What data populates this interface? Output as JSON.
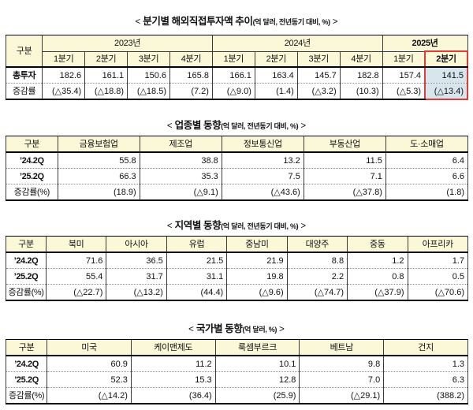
{
  "misc": {
    "lt": "<",
    "gt": ">"
  },
  "colors": {
    "header_bg": "#FBF8D8",
    "highlight_bg": "#D7E6ED",
    "highlight_border": "#DE3B3B",
    "grid_line": "#3b3b3b",
    "dotted_line": "#8a8a8a",
    "text": "#111111"
  },
  "sections": [
    {
      "id": "quarterly-trend",
      "title_main": "분기별 해외직접투자액 추이",
      "title_paren": "(억 달러, 전년동기 대비, %)",
      "table": {
        "corner_label": "구분",
        "corner_width_pct": 7.9,
        "groups": [
          {
            "label": "2023년",
            "span": 4,
            "bold": false
          },
          {
            "label": "2024년",
            "span": 4,
            "bold": false
          },
          {
            "label": "2025년",
            "span": 2,
            "bold": true
          }
        ],
        "subheaders": [
          "1분기",
          "2분기",
          "3분기",
          "4분기",
          "1분기",
          "2분기",
          "3분기",
          "4분기",
          "1분기",
          "2분기"
        ],
        "highlight_col": 9,
        "rows": [
          {
            "label": "총투자",
            "bold": true,
            "values": [
              "182.6",
              "161.1",
              "150.6",
              "165.8",
              "166.1",
              "163.4",
              "145.7",
              "182.8",
              "157.4",
              "141.5"
            ]
          },
          {
            "label": "증감률",
            "bold": false,
            "values": [
              "(△35.4)",
              "(△18.8)",
              "(△18.5)",
              "(7.2)",
              "(△9.0)",
              "(1.4)",
              "(△3.2)",
              "(10.3)",
              "(△5.3)",
              "(△13.4)"
            ]
          }
        ]
      }
    },
    {
      "id": "by-industry",
      "title_main": "업종별 동향",
      "title_paren": "(억 달러, 전년동기 대비, %)",
      "table": {
        "corner_label": "구분",
        "corner_width_pct": 11.2,
        "headers": [
          "금융보험업",
          "제조업",
          "정보통신업",
          "부동산업",
          "도·소매업"
        ],
        "rows": [
          {
            "label": "’24.2Q",
            "bold": true,
            "values": [
              "55.8",
              "38.8",
              "13.2",
              "11.5",
              "6.4"
            ]
          },
          {
            "label": "’25.2Q",
            "bold": true,
            "values": [
              "66.3",
              "35.3",
              "7.5",
              "7.1",
              "6.6"
            ]
          },
          {
            "label": "증감률(%)",
            "bold": false,
            "values": [
              "(18.9)",
              "(△9.1)",
              "(△43.6)",
              "(△37.8)",
              "(1.8)"
            ]
          }
        ]
      }
    },
    {
      "id": "by-region",
      "title_main": "지역별 동향",
      "title_paren": "(억 달러, 전년동기 대비, %)",
      "table": {
        "corner_label": "구분",
        "corner_width_pct": 8.7,
        "headers": [
          "북미",
          "아시아",
          "유럽",
          "중남미",
          "대양주",
          "중동",
          "아프리카"
        ],
        "rows": [
          {
            "label": "’24.2Q",
            "bold": true,
            "values": [
              "71.6",
              "36.5",
              "21.5",
              "21.9",
              "8.8",
              "1.2",
              "1.7"
            ]
          },
          {
            "label": "’25.2Q",
            "bold": true,
            "values": [
              "55.4",
              "31.7",
              "31.1",
              "19.8",
              "2.2",
              "0.8",
              "0.5"
            ]
          },
          {
            "label": "증감률(%)",
            "bold": false,
            "values": [
              "(△22.7)",
              "(△13.2)",
              "(44.4)",
              "(△9.6)",
              "(△74.7)",
              "(△37.9)",
              "(△70.6)"
            ]
          }
        ]
      }
    },
    {
      "id": "by-country",
      "title_main": "국가별 동향",
      "title_paren": "(억 달러, %)",
      "table": {
        "corner_label": "구분",
        "corner_width_pct": 8.9,
        "headers": [
          "미국",
          "케이맨제도",
          "룩셈부르크",
          "베트남",
          "건지"
        ],
        "rows": [
          {
            "label": "’24.2Q",
            "bold": true,
            "values": [
              "60.9",
              "11.2",
              "10.1",
              "9.8",
              "1.3"
            ]
          },
          {
            "label": "’25.2Q",
            "bold": true,
            "values": [
              "52.3",
              "15.3",
              "12.8",
              "7.0",
              "6.3"
            ]
          },
          {
            "label": "증감률(%)",
            "bold": false,
            "values": [
              "(△14.2)",
              "(36.4)",
              "(25.9)",
              "(△29.1)",
              "(388.2)"
            ]
          }
        ]
      }
    }
  ]
}
